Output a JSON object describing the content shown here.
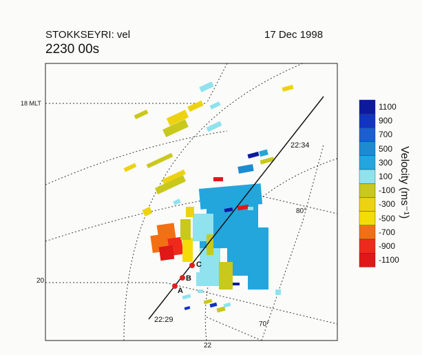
{
  "header": {
    "station": "STOKKSEYRI: vel",
    "time": "2230 00s",
    "date": "17 Dec 1998"
  },
  "chart_data": {
    "type": "heatmap",
    "title": "STOKKSEYRI: vel",
    "subtitle": "2230 00s",
    "date": "17 Dec 1998",
    "colorbar": {
      "label": "Velocity (ms⁻¹)",
      "ticks": [
        "1100",
        "900",
        "700",
        "500",
        "300",
        "100",
        "-100",
        "-300",
        "-500",
        "-700",
        "-900",
        "-1100"
      ],
      "colors": [
        "#0d1a9e",
        "#1234c2",
        "#1b5ed0",
        "#1c8bd2",
        "#23a6dc",
        "#8fe2ee",
        "#c9c81c",
        "#ecd211",
        "#f4dc08",
        "#f27014",
        "#ee2a1c",
        "#e01818"
      ]
    },
    "grid_labels": {
      "mlt_18": "18 MLT",
      "mlt_20": "20",
      "mlt_22": "22",
      "lat_80": "80°",
      "lat_70": "70°"
    },
    "track": {
      "start_label": "22:29",
      "end_label": "22:34",
      "points": [
        "A",
        "B",
        "C"
      ]
    }
  }
}
